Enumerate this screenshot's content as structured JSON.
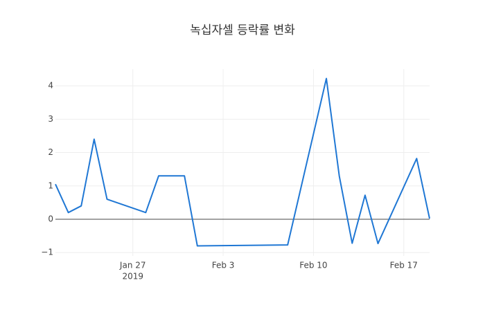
{
  "chart_data": {
    "type": "line",
    "title": "녹십자셀 등락률 변화",
    "x": [
      "2019-01-21",
      "2019-01-22",
      "2019-01-23",
      "2019-01-24",
      "2019-01-25",
      "2019-01-28",
      "2019-01-29",
      "2019-01-31",
      "2019-02-01",
      "2019-02-08",
      "2019-02-11",
      "2019-02-12",
      "2019-02-13",
      "2019-02-14",
      "2019-02-15",
      "2019-02-18",
      "2019-02-19"
    ],
    "series": [
      {
        "color": "#1f77d4",
        "values": [
          1.05,
          0.2,
          0.4,
          2.4,
          0.6,
          0.2,
          1.3,
          1.3,
          -0.8,
          -0.77,
          4.22,
          1.3,
          -0.72,
          0.72,
          -0.73,
          1.82,
          0.02
        ]
      }
    ],
    "xlim": [
      "2019-01-21",
      "2019-02-19"
    ],
    "xticks": [
      {
        "value": "2019-01-27",
        "label": "Jan 27",
        "sublabel": "2019"
      },
      {
        "value": "2019-02-03",
        "label": "Feb 3"
      },
      {
        "value": "2019-02-10",
        "label": "Feb 10"
      },
      {
        "value": "2019-02-17",
        "label": "Feb 17"
      }
    ],
    "ylim": [
      -1.1,
      4.5
    ],
    "yticks": [
      {
        "value": -1,
        "label": "−1"
      },
      0,
      1,
      2,
      3,
      4
    ],
    "grid": true
  }
}
